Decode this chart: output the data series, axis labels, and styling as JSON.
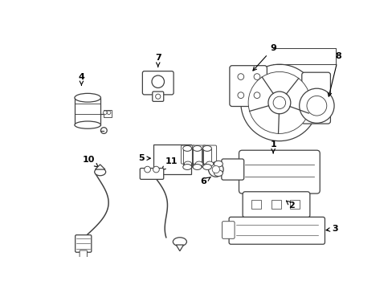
{
  "background_color": "#ffffff",
  "line_color": "#404040",
  "fig_width": 4.89,
  "fig_height": 3.6,
  "dpi": 100,
  "lw": 0.9
}
